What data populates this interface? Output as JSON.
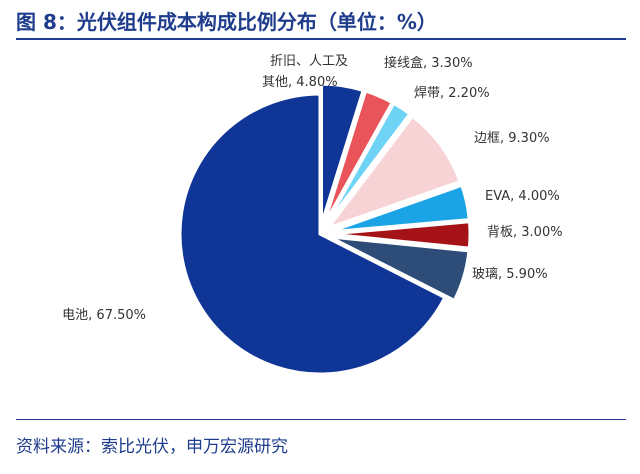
{
  "title": "图 8：光伏组件成本构成比例分布（单位：%）",
  "source": "资料来源：索比光伏，申万宏源研究",
  "chart_data": {
    "type": "pie",
    "title": "",
    "slices": [
      {
        "label": "电池",
        "value": 67.5,
        "display": "67.50%",
        "color": "#0f3596"
      },
      {
        "label": "折旧、人工及其他",
        "value": 4.8,
        "display": "4.80%",
        "color": "#0f3596"
      },
      {
        "label": "接线盒",
        "value": 3.3,
        "display": "3.30%",
        "color": "#e8545a"
      },
      {
        "label": "焊带",
        "value": 2.2,
        "display": "2.20%",
        "color": "#6fd3f5"
      },
      {
        "label": "边框",
        "value": 9.3,
        "display": "9.30%",
        "color": "#f7d3d5"
      },
      {
        "label": "EVA",
        "value": 4.0,
        "display": "4.00%",
        "color": "#1aa4e6"
      },
      {
        "label": "背板",
        "value": 3.0,
        "display": "3.00%",
        "color": "#a51217"
      },
      {
        "label": "玻璃",
        "value": 5.9,
        "display": "5.90%",
        "color": "#2d4d78"
      }
    ],
    "explode_order": [
      false,
      true,
      true,
      true,
      true,
      true,
      true,
      true
    ]
  }
}
